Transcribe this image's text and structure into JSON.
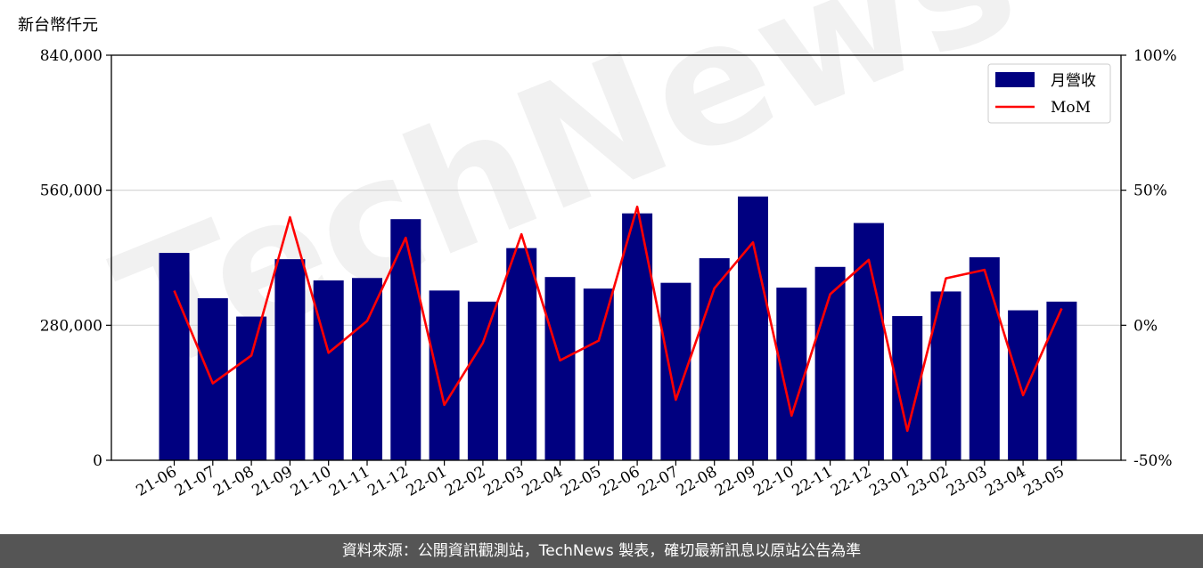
{
  "chart_data": {
    "type": "bar",
    "ylabel": "新台幣仟元",
    "categories": [
      "21-06",
      "21-07",
      "21-08",
      "21-09",
      "21-10",
      "21-11",
      "21-12",
      "22-01",
      "22-02",
      "22-03",
      "22-04",
      "22-05",
      "22-06",
      "22-07",
      "22-08",
      "22-09",
      "22-10",
      "22-11",
      "22-12",
      "23-01",
      "23-02",
      "23-03",
      "23-04",
      "23-05"
    ],
    "series": [
      {
        "name": "月營收",
        "type": "bar",
        "axis": "left",
        "color": "#000080",
        "values": [
          430000,
          336000,
          298000,
          417000,
          373000,
          378000,
          500000,
          352000,
          329000,
          440000,
          380000,
          356000,
          512000,
          368000,
          419000,
          547000,
          358000,
          401000,
          492000,
          299000,
          350000,
          421000,
          311000,
          329000
        ]
      },
      {
        "name": "MoM",
        "type": "line",
        "axis": "right",
        "color": "#ff0000",
        "values": [
          12.8,
          -21.5,
          -11.2,
          40.0,
          -10.2,
          1.6,
          32.4,
          -29.5,
          -6.5,
          33.7,
          -13.0,
          -5.7,
          43.9,
          -27.6,
          13.7,
          30.7,
          -33.5,
          11.5,
          24.2,
          -39.1,
          17.4,
          20.5,
          -25.9,
          6.2
        ]
      }
    ],
    "y_left": {
      "min": 0,
      "max": 840000,
      "ticks": [
        0,
        280000,
        560000,
        840000
      ],
      "tick_labels": [
        "0",
        "280,000",
        "560,000",
        "840,000"
      ]
    },
    "y_right": {
      "min": -50,
      "max": 100,
      "ticks": [
        -50,
        0,
        50,
        100
      ],
      "tick_labels": [
        "-50%",
        "0%",
        "50%",
        "100%"
      ]
    },
    "grid": "horizontal",
    "legend": {
      "position": "top-right",
      "entries": [
        "月營收",
        "MoM"
      ]
    }
  },
  "watermark": "TechNews",
  "footer": "資料來源：公開資訊觀測站，TechNews 製表，確切最新訊息以原站公告為準"
}
